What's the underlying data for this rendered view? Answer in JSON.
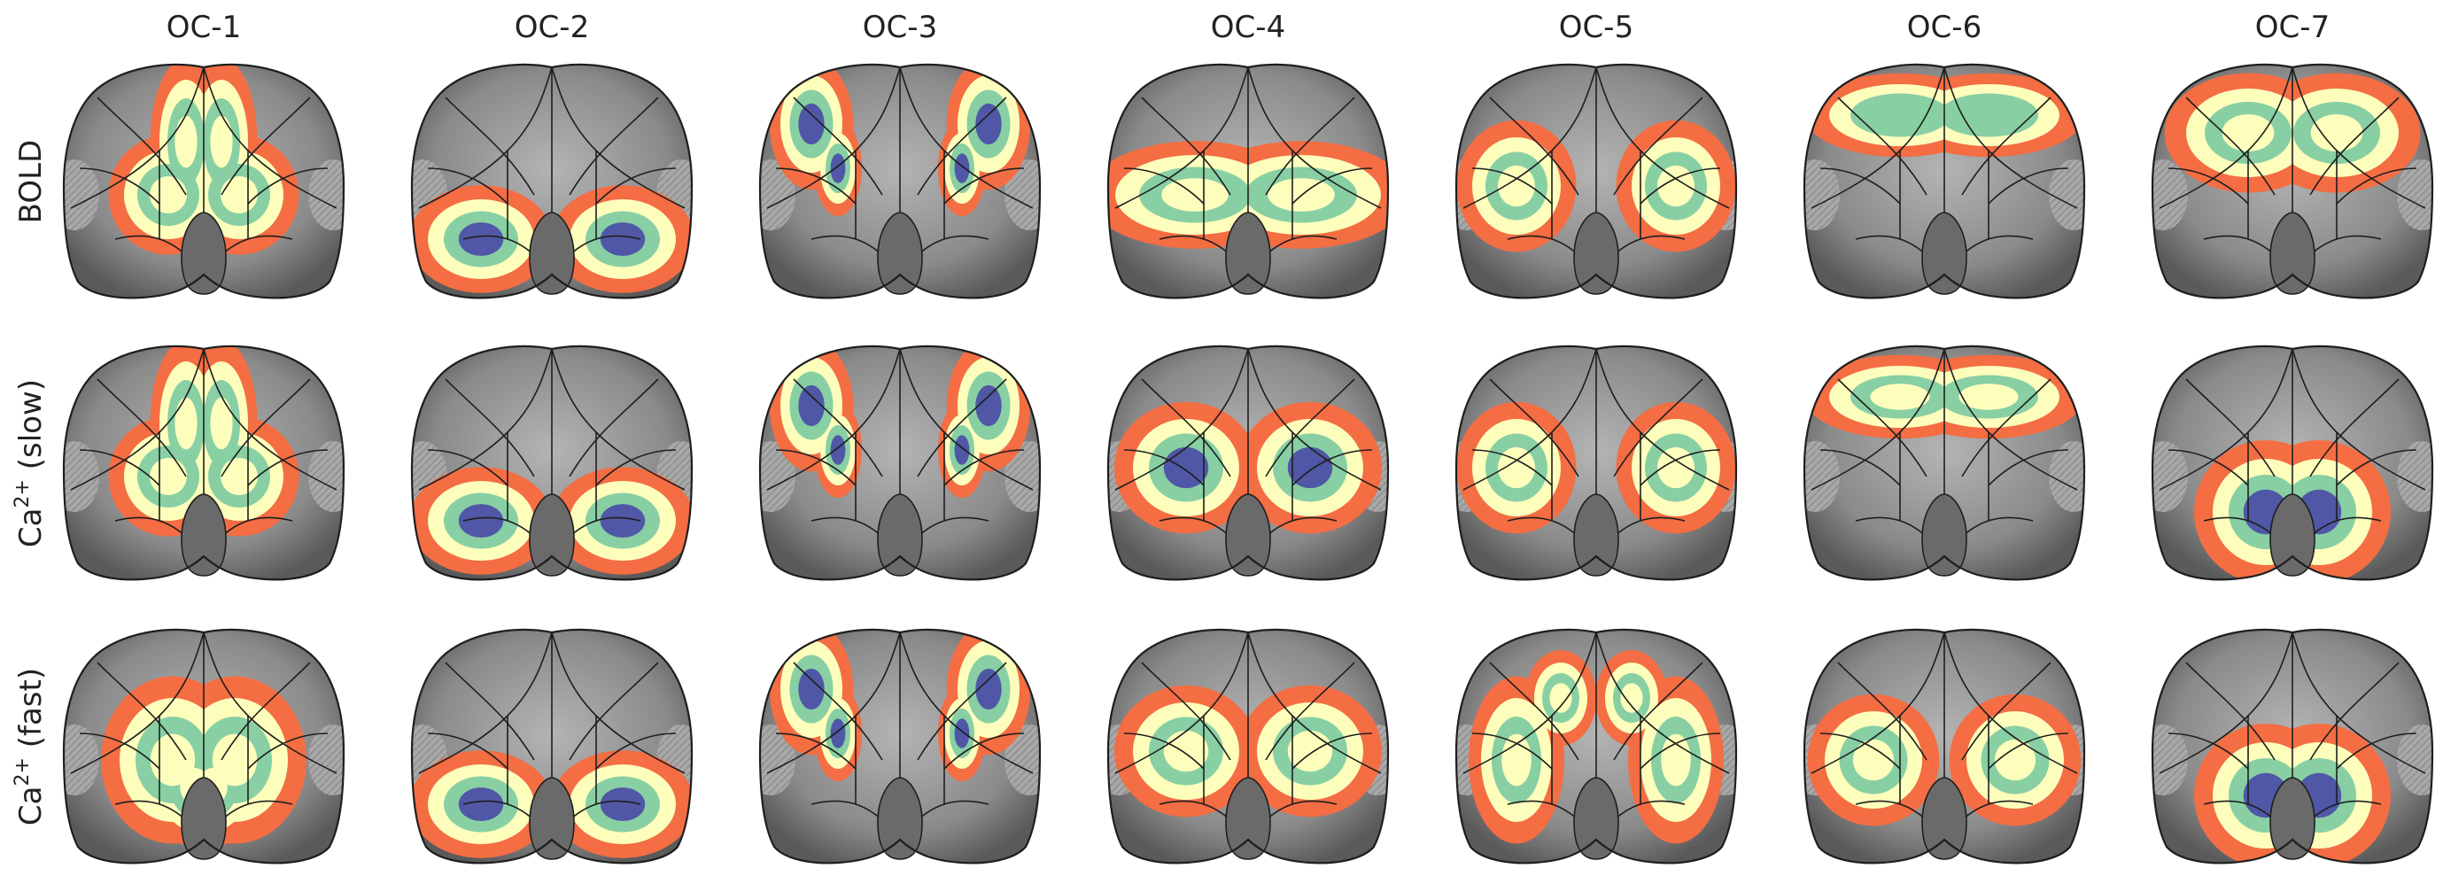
{
  "columns": [
    "OC-1",
    "OC-2",
    "OC-3",
    "OC-4",
    "OC-5",
    "OC-6",
    "OC-7"
  ],
  "rows": [
    {
      "base": "BOLD",
      "sup": "",
      "suffix": ""
    },
    {
      "base": "Ca",
      "sup": "2+",
      "suffix": " (slow)"
    },
    {
      "base": "Ca",
      "sup": "2+",
      "suffix": " (fast)"
    }
  ],
  "colors": {
    "background": "#ffffff",
    "brain_dark": "#5a5a5a",
    "brain_light": "#b4b4b4",
    "outline": "#1e1e1e",
    "levels": [
      "#f46d43",
      "#fdfebc",
      "#88cfa4",
      "#4f57a6"
    ]
  }
}
